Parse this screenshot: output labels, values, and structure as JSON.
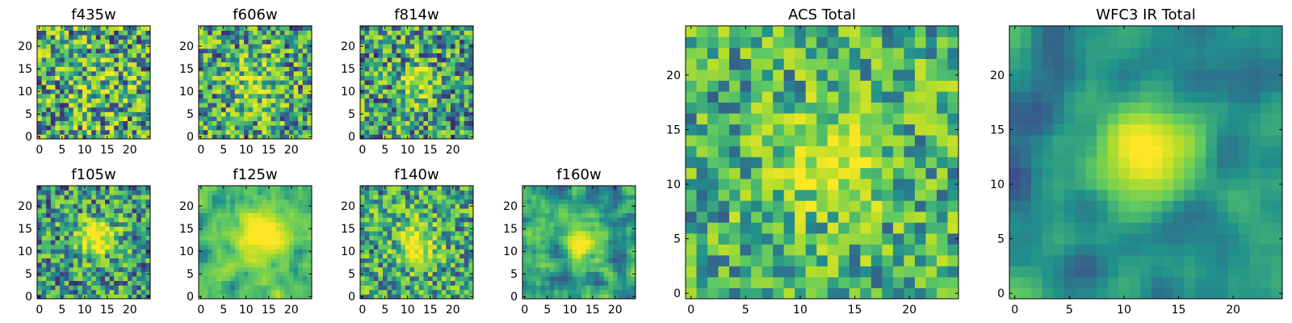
{
  "chart_data": {
    "type": "heatmap",
    "colormap": "viridis",
    "colormap_stops": [
      "#440154",
      "#3b528b",
      "#21918c",
      "#5ec962",
      "#b5de2b",
      "#fde725"
    ],
    "grid_size": [
      25,
      25
    ],
    "x_range": [
      -0.5,
      24.5
    ],
    "y_range": [
      -0.5,
      24.5
    ],
    "y_origin": "bottom",
    "panels": [
      {
        "id": "f435w",
        "title": "f435w",
        "xticks": [
          0,
          5,
          10,
          15,
          20
        ],
        "yticks": [
          0,
          5,
          10,
          15,
          20
        ],
        "pattern": {
          "seed": 435,
          "noise": 0.82,
          "peak": 0.1,
          "sigma": 3.5,
          "center": [
            12,
            12
          ],
          "base": 0.55,
          "spread": 0.55,
          "smooth": 0
        }
      },
      {
        "id": "f606w",
        "title": "f606w",
        "xticks": [
          0,
          5,
          10,
          15,
          20
        ],
        "yticks": [
          0,
          5,
          10,
          15,
          20
        ],
        "pattern": {
          "seed": 606,
          "noise": 0.75,
          "peak": 0.3,
          "sigma": 3.0,
          "center": [
            12,
            12
          ],
          "base": 0.52,
          "spread": 0.55,
          "smooth": 0
        }
      },
      {
        "id": "f814w",
        "title": "f814w",
        "xticks": [
          0,
          5,
          10,
          15,
          20
        ],
        "yticks": [
          0,
          5,
          10,
          15,
          20
        ],
        "pattern": {
          "seed": 814,
          "noise": 0.7,
          "peak": 0.45,
          "sigma": 2.5,
          "center": [
            12,
            12
          ],
          "base": 0.48,
          "spread": 0.55,
          "smooth": 0
        }
      },
      {
        "id": "f105w",
        "title": "f105w",
        "xticks": [
          0,
          5,
          10,
          15,
          20
        ],
        "yticks": [
          0,
          5,
          10,
          15,
          20
        ],
        "pattern": {
          "seed": 105,
          "noise": 0.62,
          "peak": 0.55,
          "sigma": 3.0,
          "center": [
            13,
            13
          ],
          "base": 0.45,
          "spread": 0.55,
          "smooth": 0
        }
      },
      {
        "id": "f125w",
        "title": "f125w",
        "xticks": [
          0,
          5,
          10,
          15,
          20
        ],
        "yticks": [
          0,
          5,
          10,
          15,
          20
        ],
        "pattern": {
          "seed": 125,
          "noise": 0.55,
          "peak": 0.55,
          "sigma": 4.0,
          "center": [
            13,
            13
          ],
          "base": 0.55,
          "spread": 0.5,
          "smooth": 1
        }
      },
      {
        "id": "f140w",
        "title": "f140w",
        "xticks": [
          0,
          5,
          10,
          15,
          20
        ],
        "yticks": [
          0,
          5,
          10,
          15,
          20
        ],
        "pattern": {
          "seed": 140,
          "noise": 0.62,
          "peak": 0.5,
          "sigma": 3.2,
          "center": [
            12,
            12
          ],
          "base": 0.5,
          "spread": 0.55,
          "smooth": 0
        }
      },
      {
        "id": "f160w",
        "title": "f160w",
        "xticks": [
          0,
          5,
          10,
          15,
          20
        ],
        "yticks": [
          0,
          5,
          10,
          15,
          20
        ],
        "pattern": {
          "seed": 160,
          "noise": 0.55,
          "peak": 0.6,
          "sigma": 2.8,
          "center": [
            13,
            12
          ],
          "base": 0.45,
          "spread": 0.55,
          "smooth": 1
        }
      },
      {
        "id": "acs-total",
        "title": "ACS Total",
        "xticks": [
          0,
          5,
          10,
          15,
          20
        ],
        "yticks": [
          0,
          5,
          10,
          15,
          20
        ],
        "pattern": {
          "seed": 9001,
          "noise": 0.62,
          "peak": 0.4,
          "sigma": 3.2,
          "center": [
            13,
            12
          ],
          "base": 0.55,
          "spread": 0.5,
          "smooth": 0
        }
      },
      {
        "id": "wfc3-ir-total",
        "title": "WFC3 IR Total",
        "xticks": [
          0,
          5,
          10,
          15,
          20
        ],
        "yticks": [
          0,
          5,
          10,
          15,
          20
        ],
        "pattern": {
          "seed": 9002,
          "noise": 0.45,
          "peak": 0.65,
          "sigma": 3.0,
          "center": [
            12,
            13
          ],
          "base": 0.38,
          "spread": 0.5,
          "smooth": 2
        }
      }
    ]
  }
}
